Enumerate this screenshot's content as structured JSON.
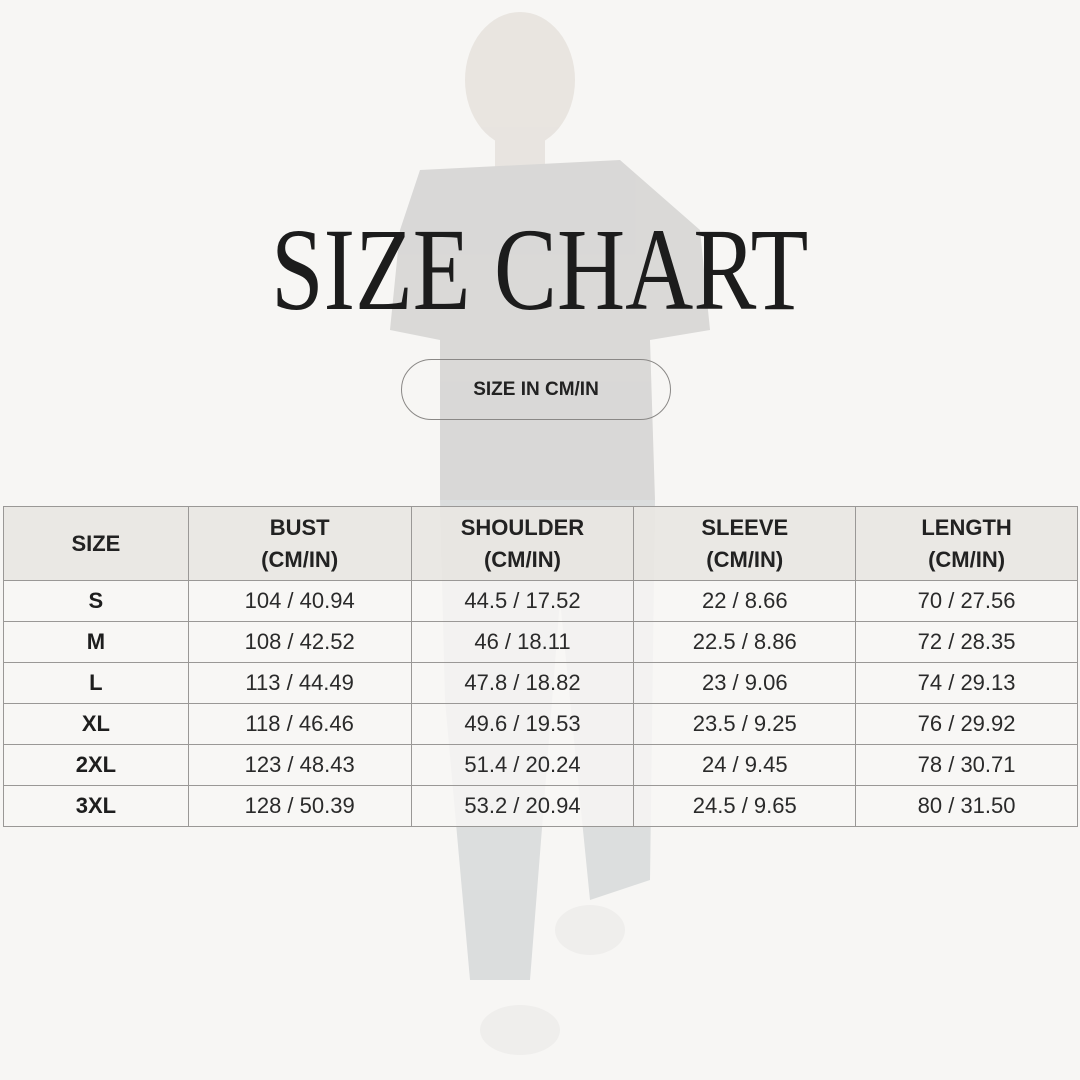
{
  "title": "SIZE CHART",
  "unit_button": "SIZE IN CM/IN",
  "table": {
    "headers": [
      {
        "line1": "SIZE",
        "line2": ""
      },
      {
        "line1": "BUST",
        "line2": "(CM/IN)"
      },
      {
        "line1": "SHOULDER",
        "line2": "(CM/IN)"
      },
      {
        "line1": "SLEEVE",
        "line2": "(CM/IN)"
      },
      {
        "line1": "LENGTH",
        "line2": "(CM/IN)"
      }
    ],
    "rows": [
      [
        "S",
        "104 / 40.94",
        "44.5 / 17.52",
        "22 / 8.66",
        "70 / 27.56"
      ],
      [
        "M",
        "108 / 42.52",
        "46 / 18.11",
        "22.5 / 8.86",
        "72 / 28.35"
      ],
      [
        "L",
        "113 / 44.49",
        "47.8 / 18.82",
        "23 / 9.06",
        "74 / 29.13"
      ],
      [
        "XL",
        "118 / 46.46",
        "49.6 / 19.53",
        "23.5 / 9.25",
        "76 / 29.92"
      ],
      [
        "2XL",
        "123 / 48.43",
        "51.4 / 20.24",
        "24 / 9.45",
        "78 / 30.71"
      ],
      [
        "3XL",
        "128 / 50.39",
        "53.2 / 20.94",
        "24.5 / 9.65",
        "80 / 31.50"
      ]
    ]
  },
  "colors": {
    "background": "#f7f6f4",
    "text": "#1e1e1e",
    "header_bg": "#e8e6e2",
    "border": "#9a9896"
  }
}
